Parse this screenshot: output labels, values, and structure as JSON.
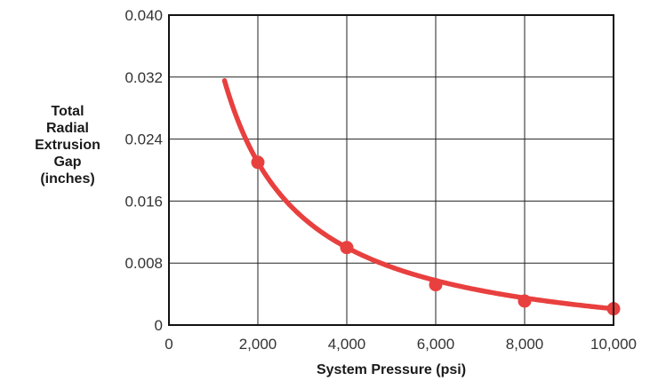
{
  "chart_data": {
    "type": "line",
    "title": "",
    "xlabel": "System Pressure (psi)",
    "ylabel": [
      "Total",
      "Radial",
      "Extrusion",
      "Gap",
      "(inches)"
    ],
    "xlim": [
      0,
      10000
    ],
    "ylim": [
      0,
      0.04
    ],
    "xticks": [
      0,
      2000,
      4000,
      6000,
      8000,
      10000
    ],
    "xtick_labels": [
      "0",
      "2,000",
      "4,000",
      "6,000",
      "8,000",
      "10,000"
    ],
    "yticks": [
      0,
      0.008,
      0.016,
      0.024,
      0.032,
      0.04
    ],
    "ytick_labels": [
      "0",
      "0.008",
      "0.016",
      "0.024",
      "0.032",
      "0.040"
    ],
    "grid": true,
    "legend": "none",
    "series": [
      {
        "color": "#e8403f",
        "curve_start_x": 1250,
        "curve_end_x": 10000,
        "x": [
          2000,
          4000,
          6000,
          8000,
          10000
        ],
        "y": [
          0.021,
          0.01,
          0.0052,
          0.0031,
          0.0021
        ]
      }
    ]
  }
}
